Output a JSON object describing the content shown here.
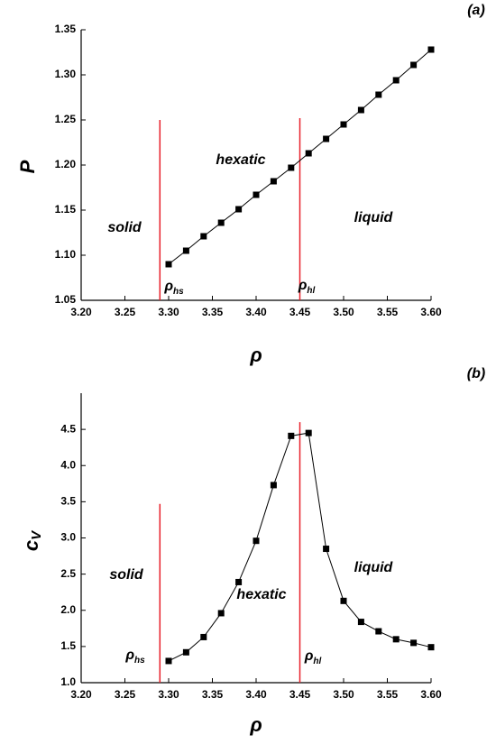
{
  "chart_data": [
    {
      "type": "line",
      "panel": "(a)",
      "xlabel": {
        "text": "ρ"
      },
      "ylabel": {
        "text": "P"
      },
      "x": [
        3.3,
        3.32,
        3.34,
        3.36,
        3.38,
        3.4,
        3.42,
        3.44,
        3.46,
        3.48,
        3.5,
        3.52,
        3.54,
        3.56,
        3.58,
        3.6
      ],
      "series": [
        {
          "color": "#000000",
          "values": [
            1.09,
            1.105,
            1.121,
            1.136,
            1.151,
            1.167,
            1.182,
            1.197,
            1.213,
            1.229,
            1.245,
            1.261,
            1.278,
            1.294,
            1.311,
            1.328
          ]
        }
      ],
      "xlim": [
        3.2,
        3.6
      ],
      "ylim": [
        1.05,
        1.35
      ],
      "xticks": [
        {
          "value": 3.2,
          "label": "3.20"
        },
        3.25,
        {
          "value": 3.3,
          "label": "3.30"
        },
        3.35,
        {
          "value": 3.4,
          "label": "3.40"
        },
        3.45,
        {
          "value": 3.5,
          "label": "3.50"
        },
        3.55,
        {
          "value": 3.6,
          "label": "3.60"
        }
      ],
      "yticks": [
        1.05,
        {
          "value": 1.1,
          "label": "1.10"
        },
        1.15,
        {
          "value": 1.2,
          "label": "1.20"
        },
        1.25,
        {
          "value": 1.3,
          "label": "1.30"
        },
        1.35
      ],
      "vlines": [
        {
          "x": 3.29,
          "top": 1.25,
          "color": "#e8202a"
        },
        {
          "x": 3.45,
          "top": 1.252,
          "color": "#e8202a"
        }
      ],
      "annotations": [
        {
          "text": "solid"
        },
        {
          "text": "hexatic"
        },
        {
          "text": "liquid"
        },
        {
          "text": "ρ",
          "sub": "hs"
        },
        {
          "text": "ρ",
          "sub": "hl"
        }
      ]
    },
    {
      "type": "line",
      "panel": "(b)",
      "xlabel": {
        "text": "ρ"
      },
      "ylabel": {
        "text": "c",
        "sub": "V"
      },
      "x": [
        3.3,
        3.32,
        3.34,
        3.36,
        3.38,
        3.4,
        3.42,
        3.44,
        3.46,
        3.48,
        3.5,
        3.52,
        3.54,
        3.56,
        3.58,
        3.6
      ],
      "series": [
        {
          "color": "#000000",
          "values": [
            1.3,
            1.42,
            1.63,
            1.96,
            2.39,
            2.96,
            3.73,
            4.41,
            4.45,
            2.85,
            2.13,
            1.84,
            1.71,
            1.6,
            1.55,
            1.49
          ]
        }
      ],
      "xlim": [
        3.2,
        3.6
      ],
      "ylim": [
        1.0,
        5.0
      ],
      "xticks": [
        {
          "value": 3.2,
          "label": "3.20"
        },
        3.25,
        {
          "value": 3.3,
          "label": "3.30"
        },
        3.35,
        {
          "value": 3.4,
          "label": "3.40"
        },
        3.45,
        {
          "value": 3.5,
          "label": "3.50"
        },
        3.55,
        {
          "value": 3.6,
          "label": "3.60"
        }
      ],
      "yticks": [
        {
          "value": 1.0,
          "label": "1.0"
        },
        1.5,
        {
          "value": 2.0,
          "label": "2.0"
        },
        2.5,
        {
          "value": 3.0,
          "label": "3.0"
        },
        3.5,
        {
          "value": 4.0,
          "label": "4.0"
        },
        4.5
      ],
      "vlines": [
        {
          "x": 3.29,
          "top": 3.47,
          "color": "#e8202a"
        },
        {
          "x": 3.45,
          "top": 4.6,
          "color": "#e8202a"
        }
      ],
      "annotations": [
        {
          "text": "solid"
        },
        {
          "text": "hexatic"
        },
        {
          "text": "liquid"
        },
        {
          "text": "ρ",
          "sub": "hs"
        },
        {
          "text": "ρ",
          "sub": "hl"
        }
      ]
    }
  ]
}
